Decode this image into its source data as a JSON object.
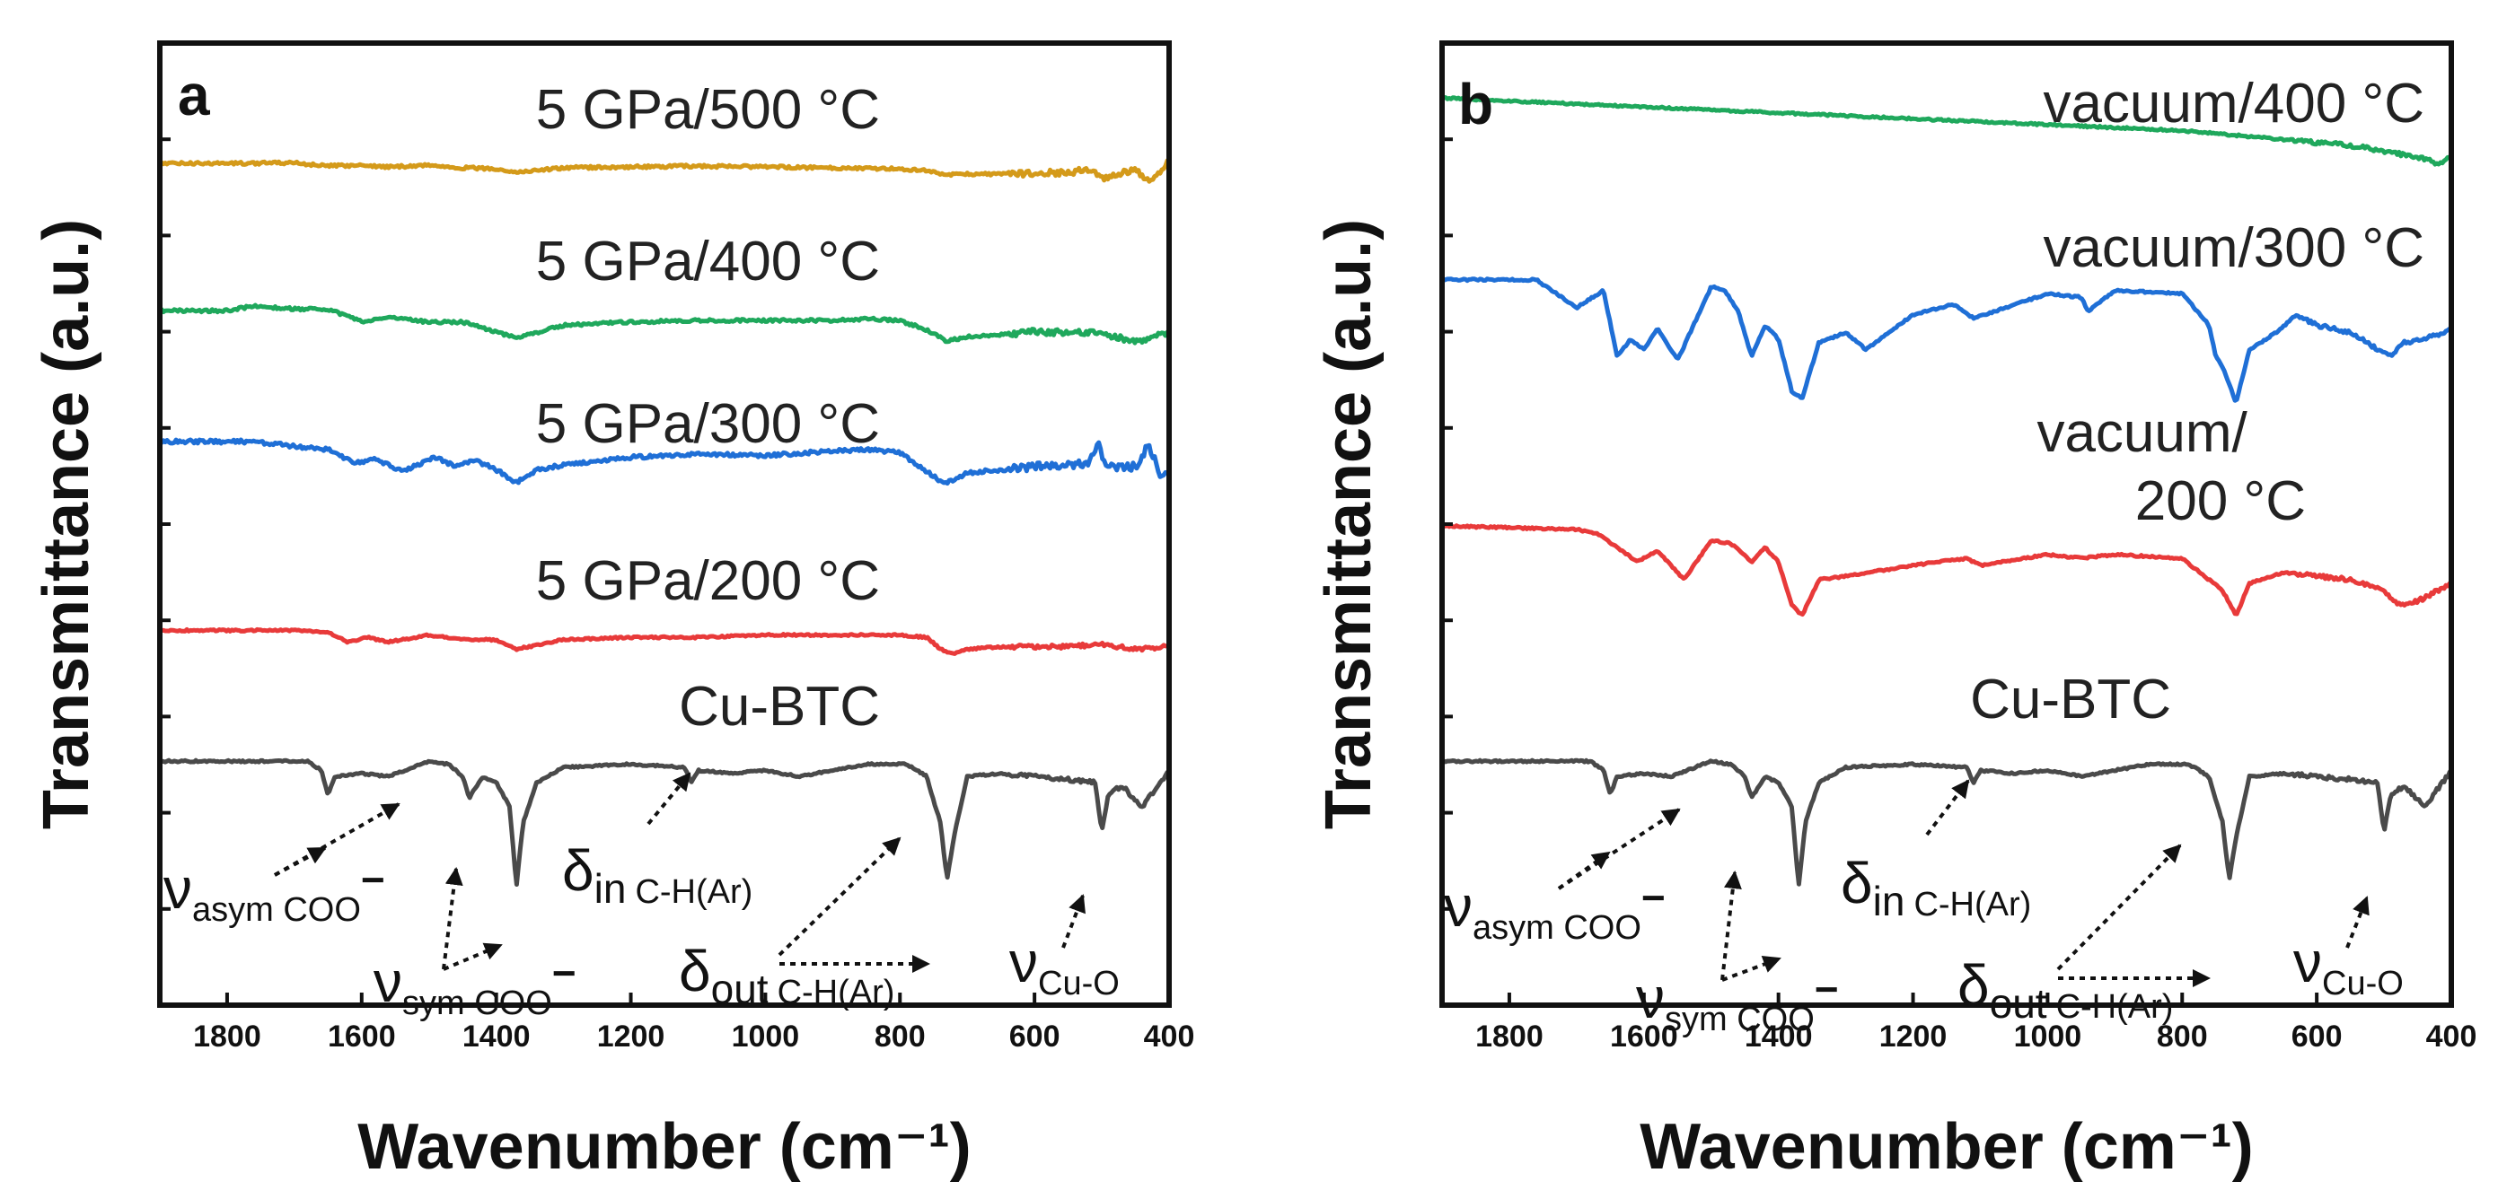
{
  "chart_data": [
    {
      "type": "line",
      "panel_label": "a",
      "xlabel": "Wavenumber (cm⁻¹)",
      "ylabel": "Transmittance (a.u.)",
      "xlim": [
        1900,
        400
      ],
      "x_reversed": true,
      "xticks": [
        1800,
        1600,
        1400,
        1200,
        1000,
        800,
        600,
        400
      ],
      "series": [
        {
          "name": "5 GPa/500 °C",
          "color": "#d49a1a",
          "noise": 3,
          "x": [
            1900,
            1800,
            1700,
            1650,
            1600,
            1560,
            1500,
            1450,
            1400,
            1370,
            1300,
            1200,
            1100,
            1000,
            900,
            800,
            760,
            730,
            700,
            650,
            600,
            550,
            515,
            500,
            480,
            450,
            430,
            420,
            410,
            400
          ],
          "y": [
            0.9,
            0.9,
            0.905,
            0.87,
            0.88,
            0.86,
            0.88,
            0.85,
            0.84,
            0.8,
            0.85,
            0.86,
            0.87,
            0.86,
            0.85,
            0.84,
            0.82,
            0.77,
            0.78,
            0.78,
            0.79,
            0.8,
            0.83,
            0.73,
            0.78,
            0.82,
            0.72,
            0.76,
            0.8,
            0.95
          ]
        },
        {
          "name": "5 GPa/400 °C",
          "color": "#1fa85c",
          "noise": 3,
          "x": [
            1900,
            1800,
            1760,
            1700,
            1650,
            1600,
            1560,
            1500,
            1450,
            1400,
            1370,
            1300,
            1200,
            1100,
            1000,
            900,
            850,
            800,
            760,
            730,
            700,
            650,
            600,
            500,
            450,
            400
          ],
          "y": [
            0.77,
            0.77,
            0.8,
            0.78,
            0.78,
            0.7,
            0.73,
            0.7,
            0.7,
            0.64,
            0.6,
            0.68,
            0.7,
            0.71,
            0.71,
            0.71,
            0.72,
            0.71,
            0.65,
            0.58,
            0.61,
            0.62,
            0.64,
            0.63,
            0.58,
            0.63
          ]
        },
        {
          "name": "5 GPa/300 °C",
          "color": "#1f6fd6",
          "noise": 4,
          "x": [
            1900,
            1760,
            1700,
            1650,
            1610,
            1580,
            1540,
            1490,
            1460,
            1430,
            1400,
            1370,
            1340,
            1300,
            1200,
            1100,
            1000,
            900,
            850,
            800,
            760,
            735,
            700,
            650,
            600,
            520,
            505,
            495,
            450,
            430,
            410,
            400
          ],
          "y": [
            0.62,
            0.62,
            0.59,
            0.57,
            0.48,
            0.51,
            0.43,
            0.52,
            0.46,
            0.5,
            0.44,
            0.36,
            0.44,
            0.47,
            0.52,
            0.54,
            0.53,
            0.56,
            0.57,
            0.55,
            0.43,
            0.35,
            0.42,
            0.44,
            0.46,
            0.48,
            0.62,
            0.46,
            0.46,
            0.6,
            0.38,
            0.42
          ]
        },
        {
          "name": "5 GPa/200 °C",
          "color": "#e83a3a",
          "noise": 2,
          "x": [
            1900,
            1700,
            1650,
            1620,
            1590,
            1560,
            1500,
            1450,
            1400,
            1370,
            1300,
            1200,
            1100,
            1000,
            900,
            800,
            760,
            740,
            720,
            700,
            650,
            600,
            550,
            500,
            450,
            400
          ],
          "y": [
            0.32,
            0.32,
            0.31,
            0.27,
            0.29,
            0.27,
            0.3,
            0.28,
            0.28,
            0.24,
            0.28,
            0.29,
            0.29,
            0.3,
            0.3,
            0.3,
            0.29,
            0.24,
            0.22,
            0.24,
            0.25,
            0.25,
            0.25,
            0.26,
            0.24,
            0.25
          ]
        },
        {
          "name": "Cu-BTC",
          "color": "#4a4a4a",
          "noise": 2,
          "x": [
            1900,
            1680,
            1660,
            1650,
            1640,
            1600,
            1560,
            1500,
            1470,
            1450,
            1440,
            1420,
            1400,
            1380,
            1370,
            1360,
            1340,
            1300,
            1200,
            1120,
            1110,
            1100,
            1050,
            1000,
            950,
            900,
            850,
            790,
            760,
            750,
            740,
            730,
            720,
            700,
            650,
            600,
            550,
            510,
            500,
            490,
            470,
            440,
            420,
            400
          ],
          "y": [
            0.15,
            0.15,
            0.12,
            0.04,
            0.1,
            0.11,
            0.1,
            0.15,
            0.14,
            0.1,
            0.03,
            0.1,
            0.08,
            0.0,
            -0.26,
            -0.05,
            0.08,
            0.13,
            0.14,
            0.13,
            0.08,
            0.12,
            0.11,
            0.12,
            0.1,
            0.12,
            0.14,
            0.14,
            0.1,
            0.02,
            -0.05,
            -0.24,
            -0.1,
            0.1,
            0.11,
            0.1,
            0.09,
            0.08,
            -0.08,
            0.04,
            0.07,
            0.0,
            0.06,
            0.12
          ]
        }
      ],
      "annotations": [
        {
          "sym": "ν",
          "sub": "asym COO",
          "sup": "−"
        },
        {
          "sym": "ν",
          "sub": "sym COO",
          "sup": "−"
        },
        {
          "sym": "δ",
          "sub1": "in",
          "sub": "C-H(Ar)"
        },
        {
          "sym": "δ",
          "sub1": "out",
          "sub": "C-H(Ar)"
        },
        {
          "sym": "ν",
          "sub": "Cu-O"
        }
      ]
    },
    {
      "type": "line",
      "panel_label": "b",
      "xlabel": "Wavenumber (cm⁻¹)",
      "ylabel": "Transmittance (a.u.)",
      "xlim": [
        1900,
        400
      ],
      "x_reversed": true,
      "xticks": [
        1800,
        1600,
        1400,
        1200,
        1000,
        800,
        600,
        400
      ],
      "series": [
        {
          "name": "vacuum/400 °C",
          "color": "#1fa85c",
          "noise": 2,
          "x": [
            1900,
            1700,
            1500,
            1300,
            1100,
            900,
            800,
            700,
            650,
            600,
            550,
            500,
            450,
            420,
            400
          ],
          "y": [
            0.96,
            0.94,
            0.92,
            0.9,
            0.88,
            0.86,
            0.85,
            0.83,
            0.82,
            0.81,
            0.8,
            0.78,
            0.76,
            0.74,
            0.76
          ]
        },
        {
          "name": "vacuum/300 °C",
          "color": "#1f6fd6",
          "noise": 2,
          "x": [
            1900,
            1760,
            1700,
            1660,
            1640,
            1620,
            1600,
            1580,
            1550,
            1500,
            1480,
            1460,
            1440,
            1420,
            1400,
            1380,
            1365,
            1340,
            1300,
            1270,
            1200,
            1140,
            1110,
            1000,
            950,
            940,
            900,
            800,
            760,
            750,
            740,
            720,
            700,
            660,
            630,
            600,
            550,
            500,
            490,
            470,
            440,
            410,
            400
          ],
          "y": [
            0.65,
            0.65,
            0.57,
            0.62,
            0.43,
            0.48,
            0.45,
            0.51,
            0.42,
            0.63,
            0.62,
            0.56,
            0.43,
            0.52,
            0.48,
            0.33,
            0.31,
            0.47,
            0.5,
            0.45,
            0.55,
            0.58,
            0.54,
            0.61,
            0.6,
            0.56,
            0.62,
            0.61,
            0.52,
            0.43,
            0.4,
            0.3,
            0.45,
            0.5,
            0.55,
            0.52,
            0.5,
            0.44,
            0.43,
            0.47,
            0.48,
            0.5,
            0.51
          ]
        },
        {
          "name": "vacuum/\n200 °C",
          "color": "#e83a3a",
          "noise": 2,
          "x": [
            1900,
            1700,
            1670,
            1640,
            1610,
            1580,
            1540,
            1500,
            1470,
            1440,
            1420,
            1400,
            1380,
            1365,
            1340,
            1300,
            1200,
            1120,
            1100,
            1000,
            950,
            900,
            800,
            760,
            740,
            720,
            700,
            650,
            600,
            550,
            500,
            480,
            450,
            420,
            400
          ],
          "y": [
            0.4,
            0.39,
            0.38,
            0.34,
            0.3,
            0.33,
            0.25,
            0.36,
            0.35,
            0.3,
            0.34,
            0.3,
            0.18,
            0.15,
            0.25,
            0.26,
            0.29,
            0.31,
            0.29,
            0.32,
            0.31,
            0.32,
            0.31,
            0.25,
            0.22,
            0.15,
            0.24,
            0.27,
            0.26,
            0.25,
            0.22,
            0.18,
            0.19,
            0.22,
            0.24
          ]
        },
        {
          "name": "Cu-BTC",
          "color": "#4a4a4a",
          "noise": 2,
          "x": [
            1900,
            1680,
            1660,
            1650,
            1640,
            1600,
            1560,
            1500,
            1470,
            1450,
            1440,
            1420,
            1400,
            1380,
            1370,
            1360,
            1340,
            1300,
            1200,
            1120,
            1110,
            1100,
            1050,
            1000,
            950,
            900,
            850,
            790,
            760,
            750,
            740,
            730,
            720,
            700,
            650,
            600,
            550,
            510,
            500,
            490,
            470,
            440,
            420,
            400
          ],
          "y": [
            0.15,
            0.15,
            0.12,
            0.04,
            0.1,
            0.11,
            0.1,
            0.15,
            0.14,
            0.1,
            0.03,
            0.1,
            0.08,
            0.0,
            -0.26,
            -0.05,
            0.08,
            0.13,
            0.14,
            0.13,
            0.08,
            0.12,
            0.11,
            0.12,
            0.1,
            0.12,
            0.14,
            0.14,
            0.1,
            0.02,
            -0.05,
            -0.24,
            -0.1,
            0.1,
            0.11,
            0.1,
            0.09,
            0.08,
            -0.08,
            0.04,
            0.07,
            0.0,
            0.06,
            0.12
          ]
        }
      ],
      "annotations": [
        {
          "sym": "ν",
          "sub": "asym COO",
          "sup": "−"
        },
        {
          "sym": "ν",
          "sub": "sym COO",
          "sup": "−"
        },
        {
          "sym": "δ",
          "sub1": "in",
          "sub": "C-H(Ar)"
        },
        {
          "sym": "δ",
          "sub1": "out",
          "sub": "C-H(Ar)"
        },
        {
          "sym": "ν",
          "sub": "Cu-O"
        }
      ]
    }
  ]
}
